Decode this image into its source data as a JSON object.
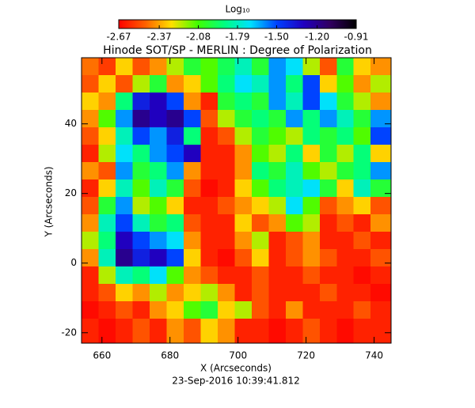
{
  "chart_data": {
    "type": "heatmap",
    "title": "Hinode SOT/SP - MERLIN : Degree of Polarization",
    "x_label": "X (Arcseconds)",
    "y_label": "Y (Arcseconds)",
    "footer": "23-Sep-2016 10:39:41.812",
    "colorbar_title": "Log₁₀",
    "colormap": [
      "#ff0000",
      "#ff6000",
      "#ffe000",
      "#40ff00",
      "#00ff80",
      "#00e0ff",
      "#0040ff",
      "#2000c0",
      "#300060",
      "#000000"
    ],
    "clim": [
      -2.67,
      -0.91
    ],
    "cticks": [
      -2.67,
      -2.37,
      -2.08,
      -1.79,
      {
        "value": -1.5,
        "label": "-1.50"
      },
      {
        "value": -1.2,
        "label": "-1.20"
      },
      -0.91
    ],
    "xlim": [
      654,
      745
    ],
    "ylim": [
      -23,
      59
    ],
    "xticks": [
      660,
      680,
      700,
      720,
      740
    ],
    "yticks": [
      -20,
      0,
      20,
      40
    ],
    "x": [
      656.5,
      661.5,
      666.5,
      671.5,
      676.5,
      681.5,
      686.5,
      691.5,
      696.5,
      701.5,
      706.5,
      711.5,
      716.5,
      721.5,
      726.5,
      731.5,
      736.5,
      741.5
    ],
    "y": [
      56.5,
      51.5,
      46.5,
      41.5,
      36.5,
      31.5,
      26.5,
      21.5,
      16.5,
      11.5,
      6.5,
      1.5,
      -3.5,
      -8.5,
      -13.5,
      -18.5
    ],
    "values": [
      [
        -2.45,
        -2.55,
        -2.3,
        -2.5,
        -2.4,
        -2.2,
        -2.0,
        -2.1,
        -1.95,
        -1.8,
        -2.0,
        -1.6,
        -1.7,
        -2.2,
        -2.5,
        -2.0,
        -2.3,
        -2.4
      ],
      [
        -2.5,
        -2.3,
        -2.5,
        -2.2,
        -2.0,
        -2.4,
        -2.3,
        -2.1,
        -1.9,
        -1.7,
        -1.8,
        -1.6,
        -1.9,
        -1.5,
        -2.3,
        -2.1,
        -2.4,
        -2.2
      ],
      [
        -2.3,
        -2.4,
        -1.9,
        -1.4,
        -1.3,
        -1.5,
        -2.4,
        -2.6,
        -2.0,
        -1.9,
        -2.0,
        -1.6,
        -1.8,
        -1.5,
        -1.7,
        -2.0,
        -2.2,
        -2.4
      ],
      [
        -2.4,
        -2.1,
        -1.6,
        -1.2,
        -1.3,
        -1.2,
        -1.5,
        -2.5,
        -2.2,
        -2.0,
        -1.9,
        -2.0,
        -1.6,
        -1.9,
        -1.6,
        -1.8,
        -2.0,
        -1.6
      ],
      [
        -2.5,
        -2.3,
        -1.8,
        -1.5,
        -1.6,
        -1.4,
        -1.9,
        -2.6,
        -2.5,
        -2.2,
        -2.0,
        -2.1,
        -2.2,
        -1.9,
        -2.0,
        -1.9,
        -2.1,
        -1.5
      ],
      [
        -2.6,
        -2.2,
        -1.7,
        -1.9,
        -1.6,
        -1.5,
        -1.3,
        -2.6,
        -2.6,
        -2.4,
        -2.1,
        -2.2,
        -1.9,
        -2.3,
        -2.0,
        -2.2,
        -1.9,
        -2.3
      ],
      [
        -2.4,
        -2.5,
        -1.6,
        -2.0,
        -1.9,
        -1.6,
        -2.4,
        -2.6,
        -2.6,
        -2.4,
        -1.9,
        -2.0,
        -1.8,
        -2.1,
        -2.2,
        -2.0,
        -1.9,
        -1.6
      ],
      [
        -2.6,
        -2.3,
        -1.8,
        -2.1,
        -1.8,
        -2.0,
        -2.5,
        -2.65,
        -2.6,
        -2.3,
        -2.1,
        -1.9,
        -1.8,
        -1.7,
        -2.0,
        -2.3,
        -1.8,
        -2.0
      ],
      [
        -2.5,
        -2.0,
        -1.6,
        -2.2,
        -2.1,
        -2.3,
        -2.6,
        -2.6,
        -2.5,
        -2.4,
        -2.3,
        -2.2,
        -1.7,
        -2.1,
        -2.5,
        -2.4,
        -2.3,
        -2.5
      ],
      [
        -2.4,
        -1.8,
        -1.5,
        -1.8,
        -2.0,
        -1.9,
        -2.5,
        -2.6,
        -2.6,
        -2.3,
        -2.5,
        -2.4,
        -2.1,
        -2.2,
        -2.6,
        -2.5,
        -2.6,
        -2.4
      ],
      [
        -2.2,
        -1.9,
        -1.3,
        -1.5,
        -1.6,
        -1.7,
        -2.4,
        -2.6,
        -2.6,
        -2.4,
        -2.2,
        -2.6,
        -2.5,
        -2.4,
        -2.6,
        -2.6,
        -2.5,
        -2.6
      ],
      [
        -2.4,
        -1.8,
        -1.2,
        -1.4,
        -1.3,
        -1.5,
        -2.3,
        -2.6,
        -2.65,
        -2.5,
        -2.3,
        -2.6,
        -2.5,
        -2.4,
        -2.5,
        -2.6,
        -2.6,
        -2.5
      ],
      [
        -2.6,
        -2.2,
        -1.8,
        -1.9,
        -1.7,
        -2.1,
        -2.4,
        -2.5,
        -2.6,
        -2.6,
        -2.5,
        -2.6,
        -2.6,
        -2.5,
        -2.6,
        -2.6,
        -2.65,
        -2.6
      ],
      [
        -2.6,
        -2.5,
        -2.3,
        -2.4,
        -2.2,
        -2.4,
        -2.3,
        -2.2,
        -2.4,
        -2.6,
        -2.5,
        -2.6,
        -2.6,
        -2.6,
        -2.5,
        -2.6,
        -2.6,
        -2.65
      ],
      [
        -2.65,
        -2.6,
        -2.5,
        -2.6,
        -2.4,
        -2.3,
        -2.1,
        -2.0,
        -2.3,
        -2.2,
        -2.5,
        -2.6,
        -2.4,
        -2.6,
        -2.6,
        -2.6,
        -2.5,
        -2.6
      ],
      [
        -2.6,
        -2.65,
        -2.6,
        -2.5,
        -2.6,
        -2.4,
        -2.5,
        -2.3,
        -2.4,
        -2.6,
        -2.6,
        -2.65,
        -2.6,
        -2.5,
        -2.6,
        -2.65,
        -2.6,
        -2.6
      ]
    ]
  }
}
